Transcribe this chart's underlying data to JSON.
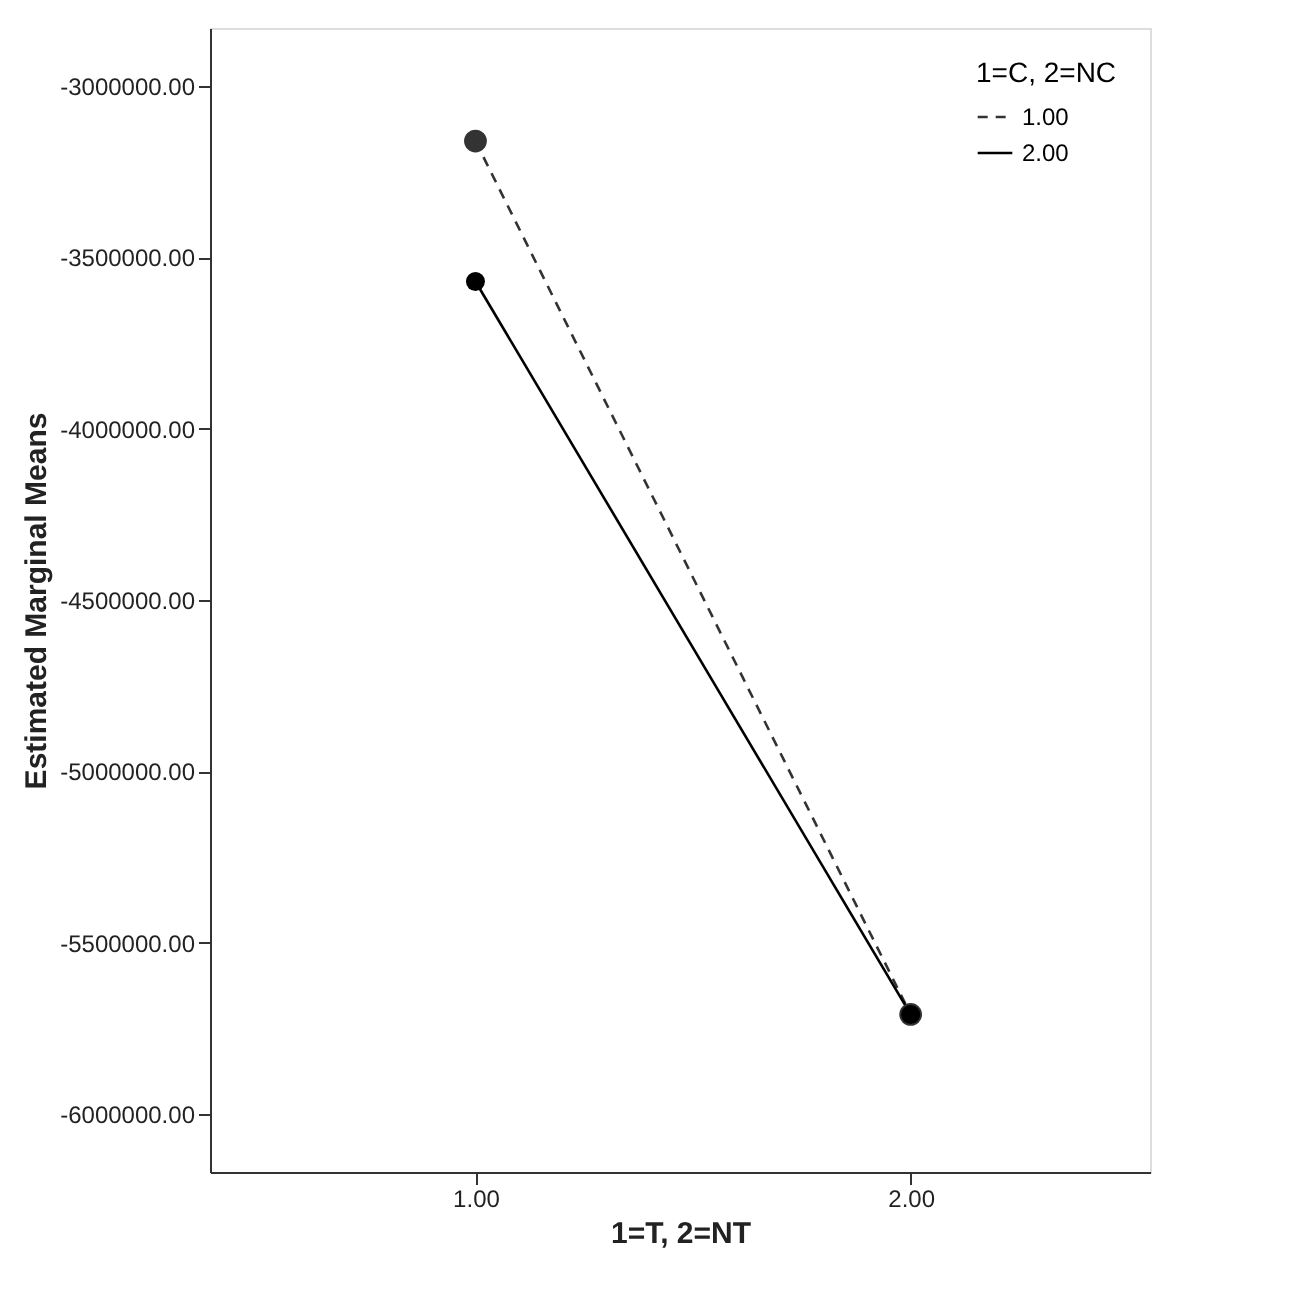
{
  "chart_data": {
    "type": "line",
    "xlabel": "1=T, 2=NT",
    "ylabel": "Estimated Marginal Means",
    "legend_title": "1=C, 2=NC",
    "x": [
      1,
      2
    ],
    "series": [
      {
        "name": "1.00",
        "color": "#333333",
        "line_style": "dashed",
        "values": [
          -3160000,
          -5710000
        ]
      },
      {
        "name": "2.00",
        "color": "#000000",
        "line_style": "solid",
        "values": [
          -3570000,
          -5710000
        ]
      }
    ],
    "xlim": [
      0.39,
      2.55
    ],
    "xticks": [
      {
        "value": 1,
        "label": "1.00"
      },
      {
        "value": 2,
        "label": "2.00"
      }
    ],
    "ylim": [
      -6170000,
      -2830000
    ],
    "yticks": [
      {
        "value": -6000000,
        "label": "-6000000.00"
      },
      {
        "value": -5500000,
        "label": "-5500000.00"
      },
      {
        "value": -5000000,
        "label": "-5000000.00"
      },
      {
        "value": -4500000,
        "label": "-4500000.00"
      },
      {
        "value": -4000000,
        "label": "-4000000.00"
      },
      {
        "value": -3500000,
        "label": "-3500000.00"
      },
      {
        "value": -3000000,
        "label": "-3000000.00"
      }
    ],
    "marker": "circle",
    "grid": false,
    "legend": "top right"
  }
}
